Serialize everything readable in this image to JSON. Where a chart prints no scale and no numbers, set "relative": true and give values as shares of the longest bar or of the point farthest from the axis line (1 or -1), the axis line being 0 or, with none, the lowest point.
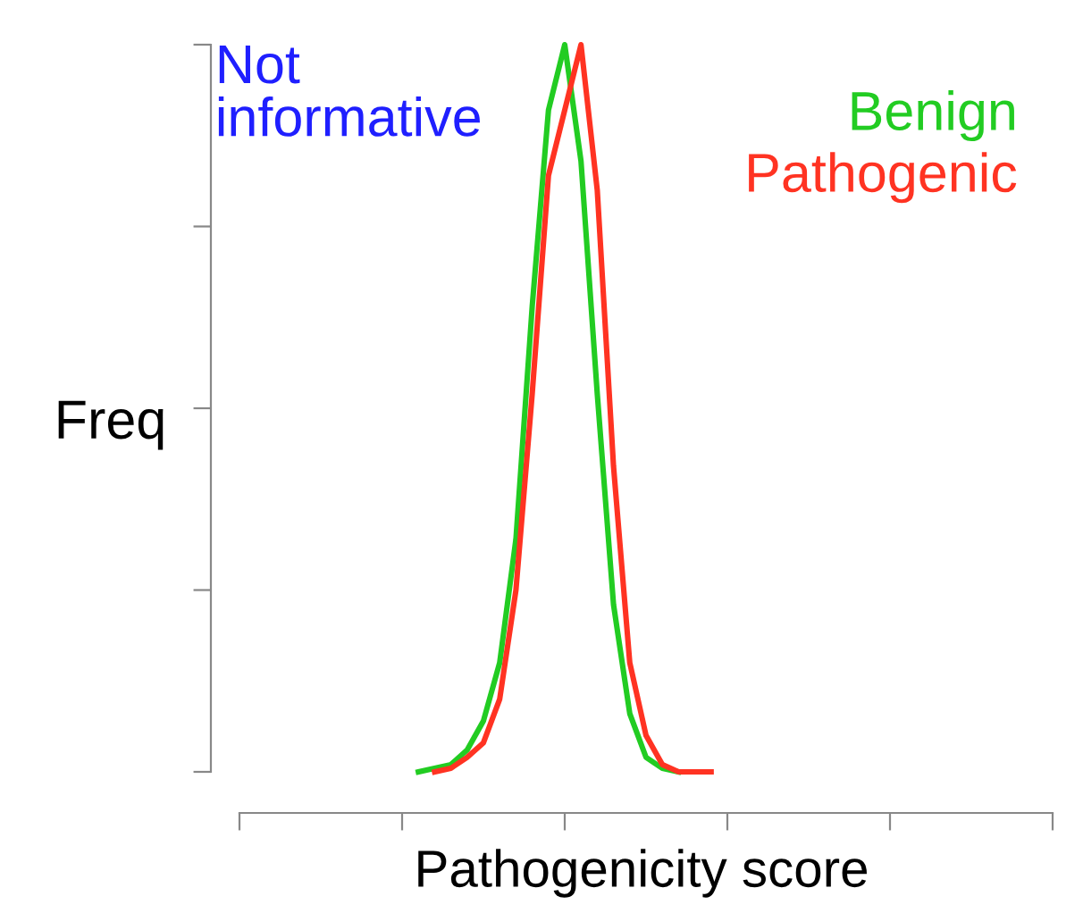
{
  "chart_data": {
    "type": "line",
    "relative": true,
    "xlabel": "Pathogenicity score",
    "ylabel": "Freq",
    "annotations": [
      "Not informative"
    ],
    "categories": [
      null,
      null,
      null,
      null,
      null,
      null,
      null,
      null,
      null,
      null,
      null,
      null,
      null,
      null,
      null,
      null,
      null,
      null,
      null,
      null,
      null,
      null,
      null,
      null,
      null,
      null,
      null,
      null,
      null,
      null,
      null,
      null,
      null,
      null,
      null,
      null,
      null,
      null,
      null,
      null,
      null,
      null,
      null,
      null,
      null,
      null,
      null,
      null,
      null,
      null,
      null
    ],
    "series": [
      {
        "name": "Benign",
        "color": "#22cc22",
        "values": [
          null,
          null,
          null,
          null,
          null,
          null,
          null,
          null,
          null,
          null,
          null,
          0,
          0.005,
          0.01,
          0.03,
          0.07,
          0.15,
          0.32,
          0.64,
          0.91,
          1.0,
          0.84,
          0.52,
          0.23,
          0.08,
          0.02,
          0.005,
          0,
          null,
          null,
          null,
          null,
          null,
          null,
          null,
          null,
          null,
          null,
          null,
          null,
          null,
          null,
          null,
          null,
          null,
          null,
          null,
          null,
          null,
          null,
          null
        ]
      },
      {
        "name": "Pathogenic",
        "color": "#ff3322",
        "values": [
          null,
          null,
          null,
          null,
          null,
          null,
          null,
          null,
          null,
          null,
          null,
          null,
          0,
          0.005,
          0.02,
          0.04,
          0.1,
          0.25,
          0.52,
          0.82,
          0.91,
          1.0,
          0.8,
          0.42,
          0.15,
          0.05,
          0.01,
          0,
          0,
          0,
          null,
          null,
          null,
          null,
          null,
          null,
          null,
          null,
          null,
          null,
          null,
          null,
          null,
          null,
          null,
          null,
          null,
          null,
          null,
          null,
          null
        ]
      }
    ],
    "legend": "top right",
    "grid": false,
    "marker": "none",
    "line_style": "solid"
  }
}
